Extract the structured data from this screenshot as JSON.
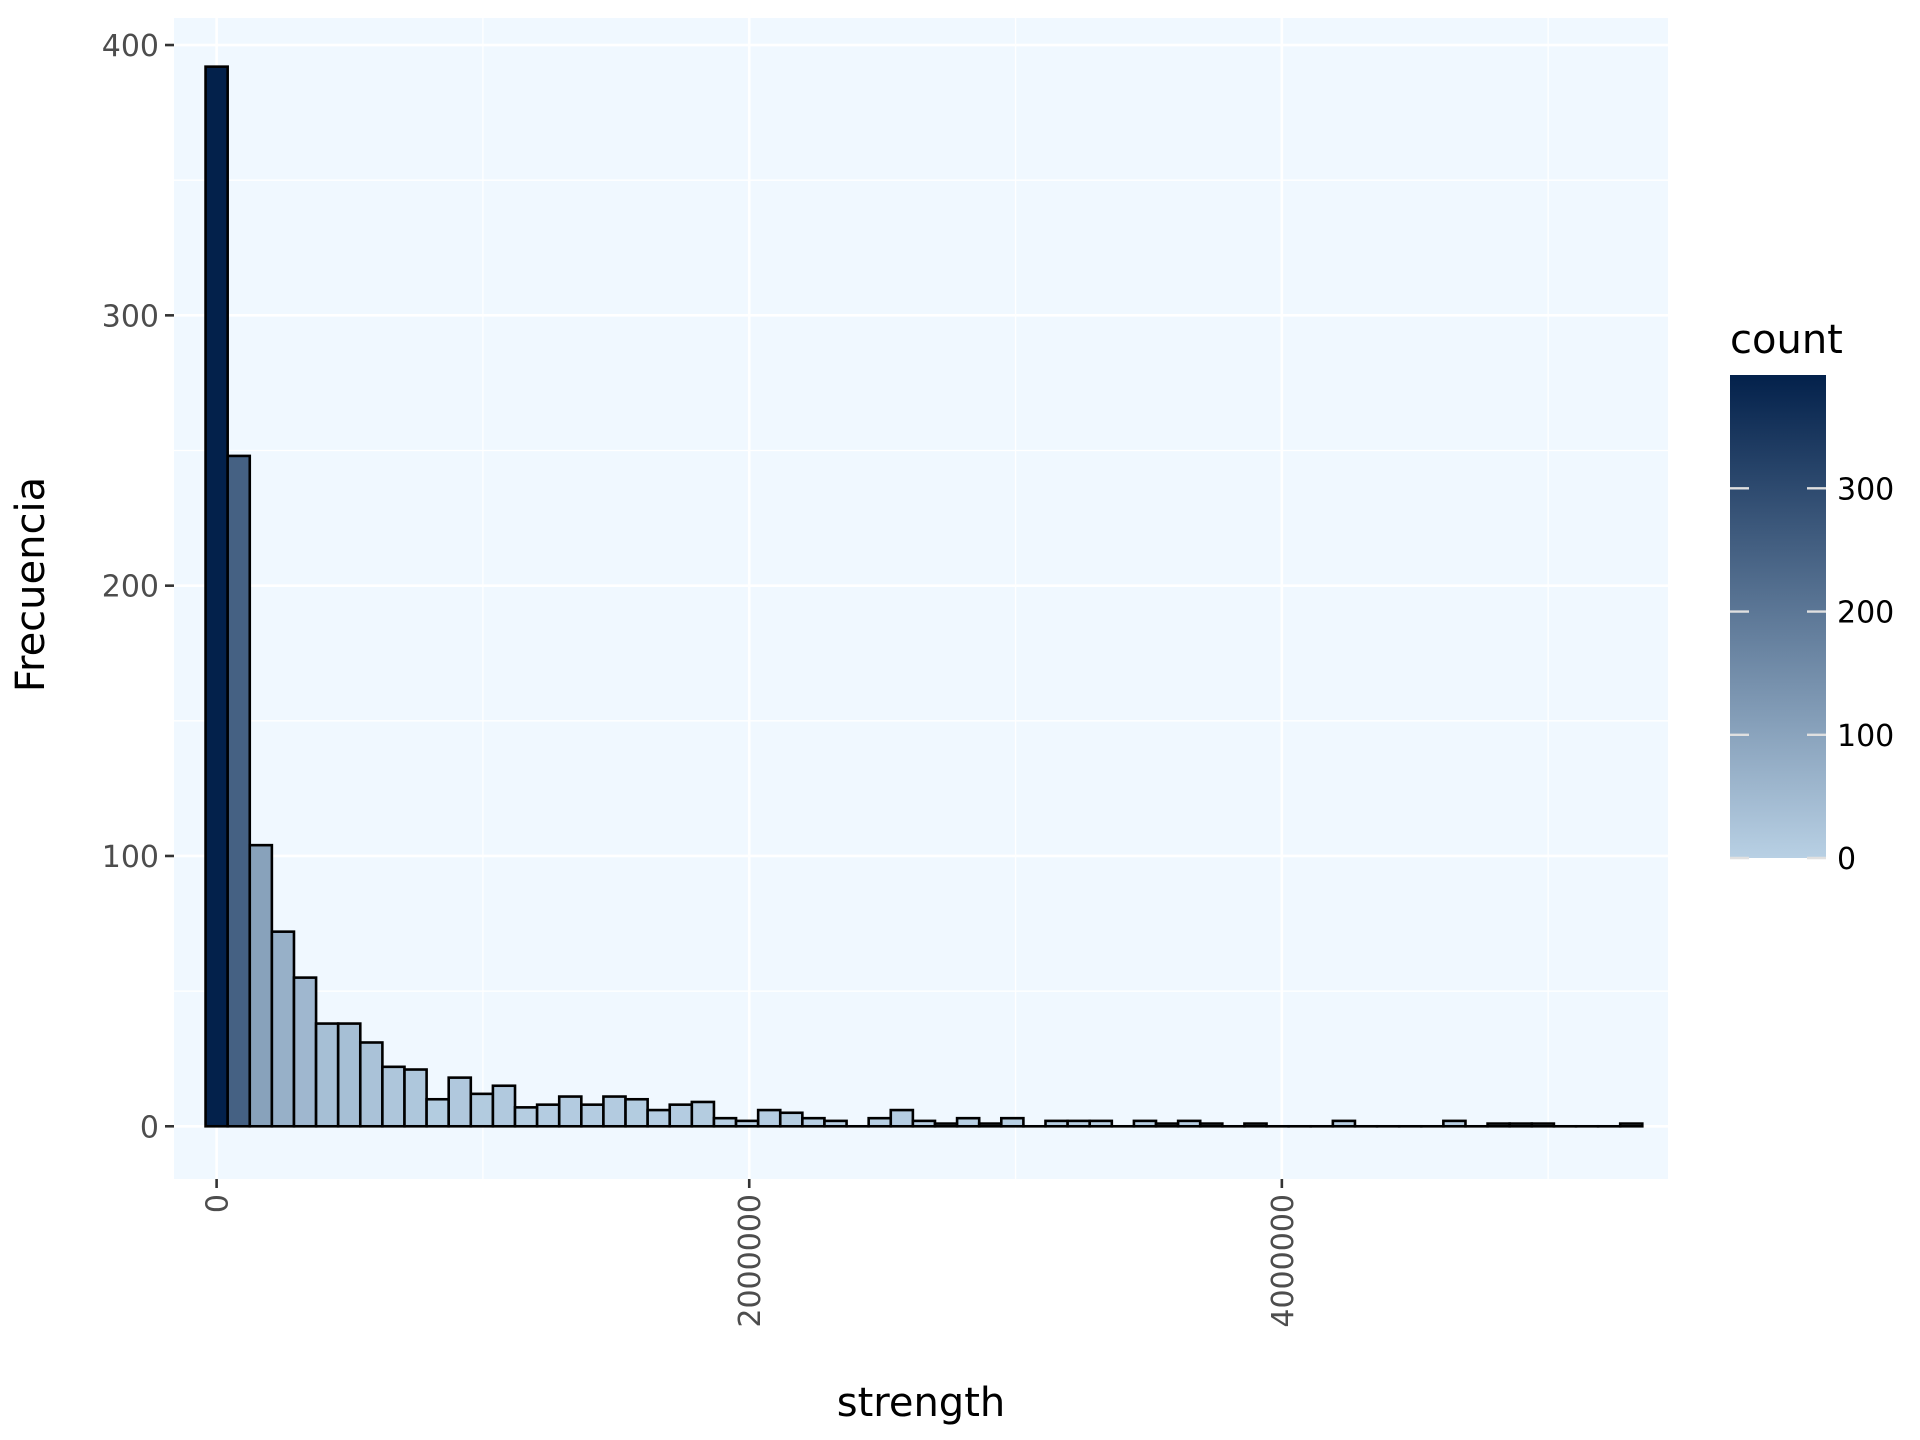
{
  "chart_data": {
    "type": "bar",
    "subtype": "histogram",
    "title": "",
    "xlabel": "strength",
    "ylabel": "Frecuencia",
    "xlim": [
      -160000,
      5450000
    ],
    "ylim": [
      -19.5,
      410
    ],
    "x_ticks": [
      0,
      2000000,
      4000000
    ],
    "x_tick_labels": [
      "0",
      "2000000",
      "4000000"
    ],
    "x_tick_rotation": "vertical",
    "y_ticks": [
      0,
      100,
      200,
      300,
      400
    ],
    "y_tick_labels": [
      "0",
      "100",
      "200",
      "300",
      "400"
    ],
    "grid": true,
    "panel_background": "#f0f8ff",
    "bar_edge_color": "#000000",
    "color_scale": {
      "title": "count",
      "low_color": "#b8d0e4",
      "high_color": "#03214b",
      "range": [
        0,
        392
      ],
      "breaks": [
        0,
        100,
        200,
        300
      ],
      "break_labels": [
        "0",
        "100",
        "200",
        "300"
      ]
    },
    "legend_position": "right",
    "bin_width": 83000,
    "bin_start": -41500,
    "counts": [
      392,
      248,
      104,
      72,
      55,
      38,
      38,
      31,
      22,
      21,
      10,
      18,
      12,
      15,
      7,
      8,
      11,
      8,
      11,
      10,
      6,
      8,
      9,
      3,
      2,
      6,
      5,
      3,
      2,
      0,
      3,
      6,
      2,
      1,
      3,
      1,
      3,
      0,
      2,
      2,
      2,
      0,
      2,
      1,
      2,
      1,
      0,
      1,
      0,
      0,
      0,
      2,
      0,
      0,
      0,
      0,
      2,
      0,
      1,
      1,
      1,
      0,
      0,
      0,
      1
    ]
  }
}
